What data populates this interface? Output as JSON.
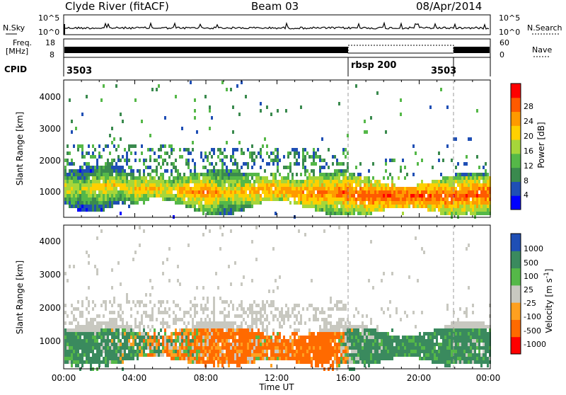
{
  "header": {
    "title": "Clyde River (fitACF)",
    "beam": "Beam 03",
    "date": "08/Apr/2014"
  },
  "nsky_panel": {
    "left_label": "N.Sky",
    "right_label": "N.Search",
    "left_ticks": [
      "10^5",
      "10^0"
    ],
    "right_ticks": [
      "10^5",
      "10^0"
    ]
  },
  "freq_panel": {
    "left_label_1": "Freq.",
    "left_label_2": "[MHz]",
    "left_ticks": [
      "18",
      "8"
    ],
    "right_label": "Nave",
    "right_ticks": [
      "60",
      "0"
    ]
  },
  "cpid_panel": {
    "label": "CPID",
    "segments": [
      "3503",
      "rbsp 200",
      "3503"
    ]
  },
  "x_axis": {
    "label": "Time UT",
    "ticks": [
      "00:00",
      "04:00",
      "08:00",
      "12:00",
      "16:00",
      "20:00",
      "00:00"
    ]
  },
  "power_panel": {
    "ylabel": "Slant Range [km]",
    "yticks": [
      "1000",
      "2000",
      "3000",
      "4000"
    ],
    "cbar_label": "Power [dB]",
    "cbar_ticks": [
      "4",
      "8",
      "12",
      "16",
      "20",
      "24",
      "28"
    ]
  },
  "velocity_panel": {
    "ylabel": "Slant Range [km]",
    "yticks": [
      "1000",
      "2000",
      "3000",
      "4000"
    ],
    "cbar_label": "Velocity [m s",
    "cbar_label_sup": "-1",
    "cbar_label_end": "]",
    "cbar_ticks": [
      "1000",
      "500",
      "100",
      "25",
      "-25",
      "-100",
      "-500",
      "-1000"
    ]
  },
  "chart_data": [
    {
      "type": "heatmap",
      "title": "Power [dB]",
      "xlabel": "Time UT",
      "ylabel": "Slant Range [km]",
      "x_range_hours": [
        0,
        24
      ],
      "y_range_km": [
        180,
        4500
      ],
      "value_range": [
        0,
        32
      ],
      "colors": [
        "#0000ff",
        "#1f4fb5",
        "#3a8a4e",
        "#55b848",
        "#a6d63a",
        "#ffd000",
        "#ff9a00",
        "#ff5a00",
        "#ff0000"
      ],
      "time_hours": [
        0,
        1,
        2,
        3,
        4,
        5,
        6,
        7,
        8,
        9,
        10,
        11,
        12,
        13,
        14,
        15,
        16,
        17,
        18,
        19,
        20,
        21,
        22,
        23,
        24
      ],
      "band_center_km": [
        1150,
        1100,
        1150,
        1250,
        1100,
        1150,
        1100,
        1050,
        1000,
        1000,
        1050,
        1100,
        1100,
        1000,
        1000,
        1000,
        1000,
        900,
        900,
        900,
        900,
        900,
        900,
        950,
        950
      ],
      "peak_power_db": [
        22,
        20,
        24,
        22,
        24,
        24,
        22,
        26,
        28,
        24,
        24,
        26,
        26,
        26,
        28,
        28,
        30,
        30,
        30,
        30,
        30,
        30,
        30,
        30,
        30
      ]
    },
    {
      "type": "heatmap",
      "title": "Velocity [m s-1]",
      "xlabel": "Time UT",
      "ylabel": "Slant Range [km]",
      "x_range_hours": [
        0,
        24
      ],
      "y_range_km": [
        180,
        4500
      ],
      "value_range": [
        -1000,
        1000
      ],
      "colors": [
        "#ff0000",
        "#ff6a00",
        "#ffa020",
        "#c8c8c0",
        "#55b848",
        "#3a8a5e",
        "#1f4fb5"
      ],
      "time_hours": [
        0,
        1,
        2,
        3,
        4,
        5,
        6,
        7,
        8,
        9,
        10,
        11,
        12,
        13,
        14,
        15,
        16,
        17,
        18,
        19,
        20,
        21,
        22,
        23,
        24
      ],
      "band_center_km": [
        900,
        850,
        900,
        1000,
        950,
        950,
        900,
        950,
        1000,
        950,
        900,
        900,
        850,
        800,
        800,
        850,
        900,
        900,
        900,
        900,
        900,
        900,
        950,
        950,
        950
      ],
      "mean_velocity_ms": [
        200,
        250,
        200,
        150,
        100,
        50,
        0,
        -50,
        -150,
        -200,
        -200,
        -150,
        -100,
        -200,
        -250,
        -300,
        150,
        200,
        200,
        250,
        200,
        250,
        200,
        200,
        200
      ]
    }
  ]
}
